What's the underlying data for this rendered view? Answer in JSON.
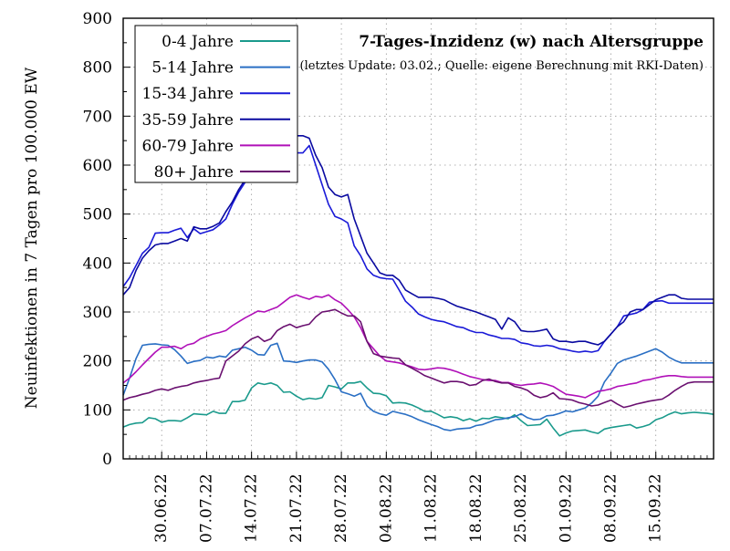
{
  "chart_data": {
    "type": "line",
    "title": "7-Tages-Inzidenz (w) nach Altersgruppe",
    "subtitle": "(letztes Update: 03.02.; Quelle: eigene Berechnung mit RKI-Daten)",
    "xlabel": "",
    "ylabel": "Neuinfektionen in 7 Tagen pro 100.000 EW",
    "ylim": [
      0,
      900
    ],
    "yticks": [
      0,
      100,
      200,
      300,
      400,
      500,
      600,
      700,
      800,
      900
    ],
    "x_start_day": 0,
    "x_end_day": 92,
    "xticks": [
      {
        "day": 6,
        "label": "30.06.22"
      },
      {
        "day": 13,
        "label": "07.07.22"
      },
      {
        "day": 20,
        "label": "14.07.22"
      },
      {
        "day": 27,
        "label": "21.07.22"
      },
      {
        "day": 34,
        "label": "28.07.22"
      },
      {
        "day": 41,
        "label": "04.08.22"
      },
      {
        "day": 48,
        "label": "11.08.22"
      },
      {
        "day": 55,
        "label": "18.08.22"
      },
      {
        "day": 62,
        "label": "25.08.22"
      },
      {
        "day": 69,
        "label": "01.09.22"
      },
      {
        "day": 76,
        "label": "08.09.22"
      },
      {
        "day": 83,
        "label": "15.09.22"
      }
    ],
    "legend_position": "top-left",
    "grid": true,
    "series": [
      {
        "name": "0-4 Jahre",
        "color": "#1a9a8c",
        "values": [
          65,
          70,
          73,
          74,
          84,
          82,
          75,
          78,
          78,
          77,
          84,
          92,
          91,
          90,
          97,
          93,
          93,
          117,
          117,
          120,
          145,
          155,
          152,
          155,
          150,
          136,
          137,
          128,
          121,
          124,
          122,
          125,
          150,
          147,
          143,
          155,
          155,
          158,
          145,
          134,
          133,
          129,
          114,
          115,
          114,
          110,
          104,
          97,
          97,
          91,
          84,
          86,
          84,
          78,
          82,
          77,
          83,
          82,
          86,
          84,
          82,
          90,
          78,
          68,
          69,
          70,
          81,
          63,
          47,
          53,
          57,
          58,
          59,
          55,
          52,
          61,
          64,
          66,
          68,
          70,
          63,
          66,
          70,
          80,
          84,
          91,
          96,
          92,
          94,
          95,
          94,
          93,
          91
        ]
      },
      {
        "name": "5-14 Jahre",
        "color": "#2a6fc4",
        "values": [
          130,
          165,
          205,
          232,
          234,
          235,
          233,
          232,
          223,
          210,
          195,
          199,
          201,
          208,
          206,
          210,
          208,
          222,
          225,
          228,
          222,
          213,
          212,
          232,
          236,
          200,
          199,
          197,
          200,
          202,
          202,
          198,
          183,
          162,
          137,
          133,
          128,
          134,
          108,
          97,
          92,
          89,
          97,
          94,
          91,
          86,
          80,
          75,
          70,
          66,
          60,
          58,
          61,
          62,
          63,
          68,
          70,
          75,
          80,
          81,
          84,
          86,
          92,
          84,
          80,
          81,
          88,
          89,
          93,
          98,
          96,
          100,
          104,
          114,
          128,
          157,
          175,
          195,
          202,
          206,
          210,
          215,
          220,
          225,
          218,
          208,
          201,
          196,
          196,
          196,
          196,
          196,
          196
        ]
      },
      {
        "name": "15-34 Jahre",
        "color": "#1a1ad8",
        "values": [
          352,
          370,
          395,
          420,
          432,
          461,
          462,
          462,
          467,
          471,
          452,
          470,
          460,
          464,
          468,
          478,
          490,
          520,
          545,
          565,
          580,
          598,
          603,
          612,
          620,
          627,
          627,
          625,
          625,
          640,
          600,
          560,
          520,
          495,
          490,
          482,
          435,
          415,
          388,
          375,
          370,
          368,
          367,
          345,
          322,
          310,
          296,
          290,
          285,
          282,
          280,
          275,
          270,
          268,
          262,
          258,
          258,
          253,
          250,
          246,
          246,
          244,
          237,
          235,
          231,
          230,
          232,
          230,
          225,
          223,
          220,
          218,
          220,
          218,
          221,
          240,
          255,
          270,
          292,
          295,
          298,
          305,
          320,
          322,
          323,
          318,
          318,
          318,
          318,
          318,
          318,
          318,
          318
        ]
      },
      {
        "name": "35-59 Jahre",
        "color": "#0a0aa0",
        "values": [
          335,
          350,
          385,
          410,
          425,
          437,
          440,
          440,
          445,
          450,
          445,
          474,
          470,
          470,
          475,
          482,
          505,
          525,
          550,
          570,
          600,
          630,
          660,
          668,
          670,
          675,
          670,
          660,
          660,
          655,
          620,
          595,
          555,
          540,
          535,
          540,
          490,
          455,
          420,
          400,
          380,
          375,
          375,
          365,
          345,
          337,
          330,
          330,
          330,
          328,
          325,
          318,
          312,
          308,
          304,
          300,
          295,
          290,
          285,
          265,
          288,
          280,
          262,
          260,
          260,
          262,
          265,
          245,
          240,
          240,
          238,
          240,
          240,
          236,
          233,
          240,
          255,
          270,
          280,
          300,
          305,
          305,
          315,
          325,
          330,
          335,
          335,
          328,
          326,
          326,
          326,
          326,
          326
        ]
      },
      {
        "name": "60-79 Jahre",
        "color": "#b010b8",
        "values": [
          155,
          165,
          178,
          192,
          205,
          218,
          228,
          228,
          230,
          225,
          233,
          236,
          245,
          250,
          255,
          258,
          262,
          272,
          280,
          288,
          295,
          302,
          300,
          305,
          310,
          320,
          330,
          335,
          330,
          326,
          332,
          330,
          335,
          325,
          318,
          305,
          290,
          268,
          240,
          225,
          210,
          200,
          198,
          196,
          192,
          188,
          183,
          182,
          184,
          186,
          185,
          182,
          178,
          173,
          168,
          165,
          162,
          160,
          160,
          156,
          156,
          152,
          150,
          152,
          153,
          155,
          152,
          148,
          140,
          132,
          130,
          128,
          125,
          132,
          138,
          140,
          143,
          148,
          150,
          153,
          155,
          160,
          162,
          165,
          168,
          170,
          170,
          168,
          167,
          167,
          167,
          167,
          167
        ]
      },
      {
        "name": "80+ Jahre",
        "color": "#6a1070",
        "values": [
          120,
          125,
          128,
          132,
          135,
          140,
          143,
          140,
          145,
          148,
          150,
          155,
          158,
          160,
          163,
          165,
          200,
          210,
          220,
          235,
          245,
          250,
          240,
          245,
          262,
          270,
          275,
          268,
          272,
          275,
          290,
          300,
          302,
          305,
          298,
          292,
          292,
          280,
          240,
          215,
          210,
          208,
          206,
          205,
          192,
          185,
          178,
          170,
          165,
          160,
          155,
          158,
          158,
          156,
          150,
          152,
          160,
          163,
          158,
          155,
          155,
          148,
          145,
          140,
          130,
          125,
          128,
          135,
          123,
          122,
          120,
          115,
          112,
          108,
          110,
          115,
          120,
          112,
          105,
          108,
          112,
          115,
          118,
          120,
          122,
          130,
          140,
          148,
          155,
          157,
          157,
          157,
          157
        ]
      }
    ]
  }
}
